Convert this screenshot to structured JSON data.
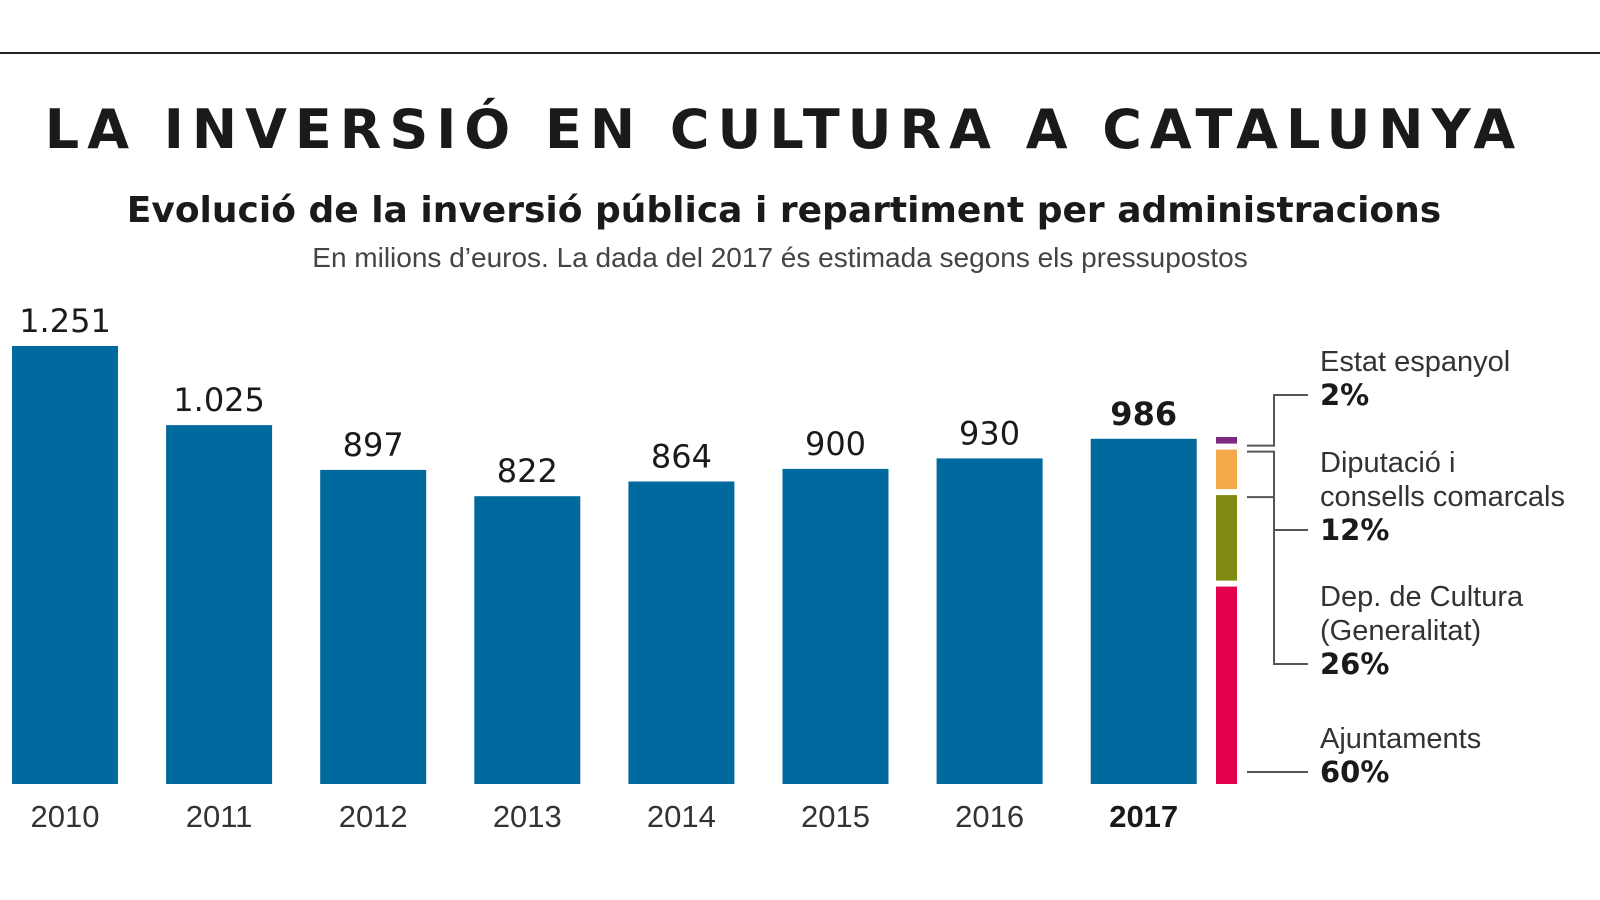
{
  "header": {
    "title": "LA INVERSIÓ EN CULTURA A CATALUNYA",
    "subtitle": "Evolució de la inversió pública i repartiment per administracions",
    "note": "En milions d’euros. La dada del 2017 és estimada segons els pressupostos"
  },
  "colors": {
    "bar": "#00699e",
    "estat": "#7b2a7e",
    "diputacio": "#f4a94a",
    "dep_cultura": "#7f8a10",
    "ajuntaments": "#e2004f"
  },
  "chart_data": [
    {
      "type": "bar",
      "title": "Evolució de la inversió pública",
      "categories": [
        "2010",
        "2011",
        "2012",
        "2013",
        "2014",
        "2015",
        "2016",
        "2017"
      ],
      "values": [
        1251,
        1025,
        897,
        822,
        864,
        900,
        930,
        986
      ],
      "value_labels": [
        "1.251",
        "1.025",
        "897",
        "822",
        "864",
        "900",
        "930",
        "986"
      ],
      "highlight": "2017",
      "ylabel": "Milions d’euros",
      "ylim": [
        0,
        1251
      ],
      "grid": false
    },
    {
      "type": "stacked-bar",
      "title": "Repartiment per administracions (2017)",
      "segments": [
        {
          "key": "estat",
          "name": "Estat espanyol",
          "value": 2,
          "label": "2%"
        },
        {
          "key": "diputacio",
          "name": "Diputació i consells comarcals",
          "name_lines": [
            "Diputació i",
            "consells comarcals"
          ],
          "value": 12,
          "label": "12%"
        },
        {
          "key": "dep_cultura",
          "name": "Dep. de Cultura (Generalitat)",
          "name_lines": [
            "Dep. de Cultura",
            "(Generalitat)"
          ],
          "value": 26,
          "label": "26%"
        },
        {
          "key": "ajuntaments",
          "name": "Ajuntaments",
          "value": 60,
          "label": "60%"
        }
      ]
    }
  ]
}
